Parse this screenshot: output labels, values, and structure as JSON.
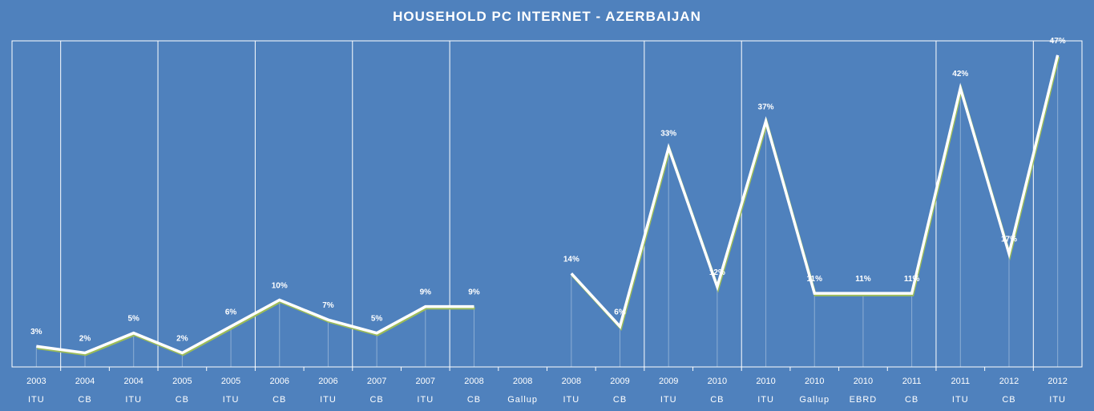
{
  "chart_data": {
    "type": "line",
    "title": "HOUSEHOLD PC INTERNET  - AZERBAIJAN",
    "categories": [
      {
        "year": "2003",
        "source": "ITU"
      },
      {
        "year": "2004",
        "source": "CB"
      },
      {
        "year": "2004",
        "source": "ITU"
      },
      {
        "year": "2005",
        "source": "CB"
      },
      {
        "year": "2005",
        "source": "ITU"
      },
      {
        "year": "2006",
        "source": "CB"
      },
      {
        "year": "2006",
        "source": "ITU"
      },
      {
        "year": "2007",
        "source": "CB"
      },
      {
        "year": "2007",
        "source": "ITU"
      },
      {
        "year": "2008",
        "source": "CB"
      },
      {
        "year": "2008",
        "source": "Gallup"
      },
      {
        "year": "2008",
        "source": "ITU"
      },
      {
        "year": "2009",
        "source": "CB"
      },
      {
        "year": "2009",
        "source": "ITU"
      },
      {
        "year": "2010",
        "source": "CB"
      },
      {
        "year": "2010",
        "source": "ITU"
      },
      {
        "year": "2010",
        "source": "Gallup"
      },
      {
        "year": "2010",
        "source": "EBRD"
      },
      {
        "year": "2011",
        "source": "CB"
      },
      {
        "year": "2011",
        "source": "ITU"
      },
      {
        "year": "2012",
        "source": "CB"
      },
      {
        "year": "2012",
        "source": "ITU"
      }
    ],
    "values": [
      3,
      2,
      5,
      2,
      6,
      10,
      7,
      5,
      9,
      9,
      null,
      14,
      6,
      33,
      12,
      37,
      11,
      11,
      11,
      42,
      17,
      47
    ],
    "data_labels": [
      "3%",
      "2%",
      "5%",
      "2%",
      "6%",
      "10%",
      "7%",
      "5%",
      "9%",
      "9%",
      "",
      "14%",
      "6%",
      "33%",
      "12%",
      "37%",
      "11%",
      "11%",
      "11%",
      "42%",
      "17%",
      "47%"
    ],
    "ylim": [
      0,
      100
    ],
    "year_separators_after_index": [
      0,
      2,
      4,
      6,
      8,
      12,
      14,
      18,
      20
    ],
    "colors": {
      "background": "#4f81bd",
      "line": "#ffffff",
      "line_shadow": "#9bbb59",
      "grid": "#ffffff"
    }
  }
}
